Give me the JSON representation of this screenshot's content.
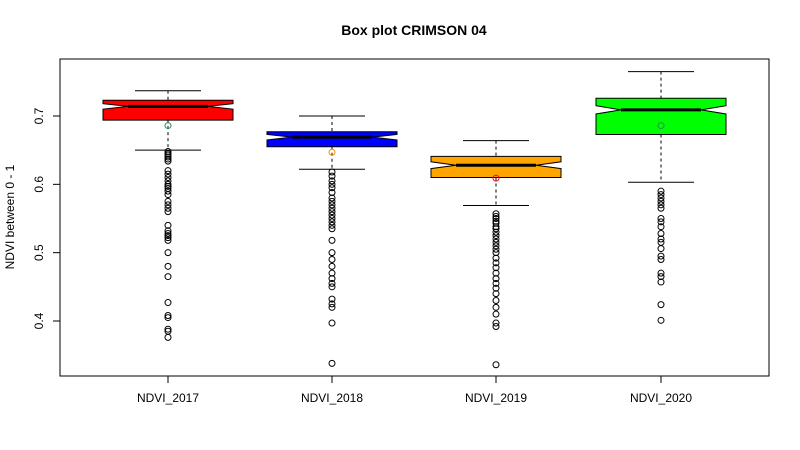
{
  "chart_data": {
    "type": "box",
    "title": "Box plot CRIMSON 04",
    "xlabel": "",
    "ylabel": "NDVI between 0 - 1",
    "ylim": [
      0.32,
      0.78
    ],
    "yticks": [
      0.4,
      0.5,
      0.6,
      0.7
    ],
    "ytick_labels": [
      "0.4",
      "0.5",
      "0.6",
      "0.7"
    ],
    "grid": false,
    "legend": "none",
    "notched": true,
    "categories": [
      "NDVI_2017",
      "NDVI_2018",
      "NDVI_2019",
      "NDVI_2020"
    ],
    "series": [
      {
        "category": "NDVI_2017",
        "color": "#ff0000",
        "whisker_low": 0.65,
        "q1": 0.694,
        "median": 0.714,
        "q3": 0.723,
        "whisker_high": 0.737,
        "notch_low": 0.71,
        "notch_high": 0.718,
        "mean": 0.686,
        "mean_color": "#2e8b57",
        "outliers": [
          0.648,
          0.645,
          0.643,
          0.64,
          0.637,
          0.634,
          0.62,
          0.615,
          0.61,
          0.605,
          0.6,
          0.597,
          0.594,
          0.59,
          0.585,
          0.575,
          0.57,
          0.565,
          0.56,
          0.54,
          0.532,
          0.528,
          0.525,
          0.522,
          0.518,
          0.5,
          0.48,
          0.465,
          0.427,
          0.408,
          0.405,
          0.388,
          0.385,
          0.376
        ]
      },
      {
        "category": "NDVI_2018",
        "color": "#0000ff",
        "whisker_low": 0.622,
        "q1": 0.655,
        "median": 0.669,
        "q3": 0.677,
        "whisker_high": 0.7,
        "notch_low": 0.665,
        "notch_high": 0.673,
        "mean": 0.647,
        "mean_color": "#ff8c00",
        "outliers": [
          0.618,
          0.612,
          0.605,
          0.6,
          0.595,
          0.588,
          0.58,
          0.575,
          0.57,
          0.565,
          0.56,
          0.555,
          0.55,
          0.545,
          0.54,
          0.535,
          0.518,
          0.5,
          0.49,
          0.48,
          0.47,
          0.462,
          0.455,
          0.45,
          0.432,
          0.425,
          0.42,
          0.397,
          0.338
        ]
      },
      {
        "category": "NDVI_2019",
        "color": "#ffa500",
        "whisker_low": 0.569,
        "q1": 0.61,
        "median": 0.628,
        "q3": 0.641,
        "whisker_high": 0.664,
        "notch_low": 0.623,
        "notch_high": 0.633,
        "mean": 0.609,
        "mean_color": "#ff0000",
        "outliers": [
          0.557,
          0.553,
          0.55,
          0.546,
          0.543,
          0.538,
          0.535,
          0.53,
          0.525,
          0.52,
          0.515,
          0.51,
          0.505,
          0.5,
          0.492,
          0.485,
          0.478,
          0.47,
          0.462,
          0.455,
          0.448,
          0.44,
          0.43,
          0.42,
          0.41,
          0.397,
          0.392,
          0.336
        ]
      },
      {
        "category": "NDVI_2020",
        "color": "#00ff00",
        "whisker_low": 0.603,
        "q1": 0.673,
        "median": 0.709,
        "q3": 0.726,
        "whisker_high": 0.765,
        "notch_low": 0.703,
        "notch_high": 0.715,
        "mean": 0.686,
        "mean_color": "#2e8b57",
        "outliers": [
          0.59,
          0.585,
          0.58,
          0.575,
          0.57,
          0.565,
          0.55,
          0.545,
          0.538,
          0.528,
          0.52,
          0.515,
          0.506,
          0.495,
          0.49,
          0.47,
          0.465,
          0.457,
          0.424,
          0.401
        ]
      }
    ]
  }
}
